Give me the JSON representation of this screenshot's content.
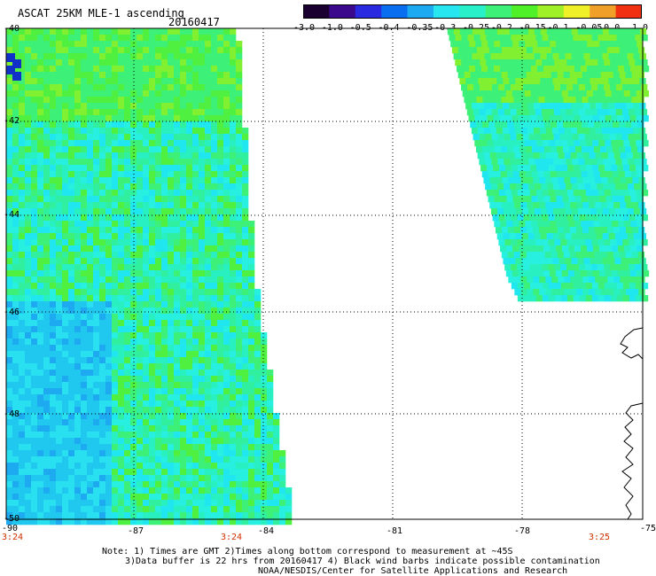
{
  "header": {
    "title": "ASCAT 25KM MLE-1 ascending",
    "date": "20160417"
  },
  "colorbar": {
    "labels": [
      "-3.0",
      "-1.0",
      "-0.5",
      "-0.4",
      "-0.35",
      "-0.3",
      "-0.25",
      "-0.2",
      "-0.15",
      "-0.1",
      "-0.05",
      "0.0",
      "1.0"
    ],
    "colors": [
      "#1a0030",
      "#3b0a8c",
      "#2a2ae0",
      "#0a6ef0",
      "#1eaaf0",
      "#28e6f0",
      "#28f0c8",
      "#3cf078",
      "#50f028",
      "#a0f028",
      "#f0f028",
      "#f0a028",
      "#f03010"
    ]
  },
  "axes": {
    "lat_labels": [
      "-40",
      "-42",
      "-44",
      "-46",
      "-48",
      "-50"
    ],
    "lon_labels": [
      "-90",
      "-87",
      "-84",
      "-81",
      "-78",
      "-75"
    ],
    "times": [
      "3:24",
      "3:24",
      "3:25"
    ]
  },
  "map_values": {
    "west_swath_edge_lon": [
      -84.6,
      -84.2,
      -83.3
    ],
    "east_swath_edge_lon": [
      -79.6,
      -78.2,
      -75.3
    ]
  },
  "notes": {
    "line1": "Note: 1) Times are GMT 2)Times along bottom correspond to measurement at ~45S",
    "line2": "3)Data buffer is 22 hrs from 20160417 4) Black wind barbs indicate possible contamination",
    "line3": "NOAA/NESDIS/Center for Satellite Applications and Research"
  }
}
